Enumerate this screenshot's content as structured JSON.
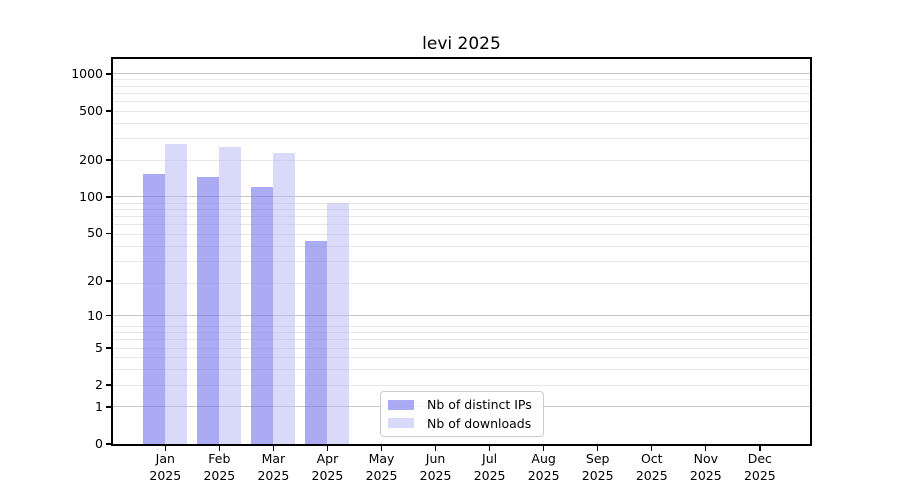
{
  "chart_data": {
    "type": "bar",
    "title": "levi 2025",
    "categories": [
      "Jan 2025",
      "Feb 2025",
      "Mar 2025",
      "Apr 2025",
      "May 2025",
      "Jun 2025",
      "Jul 2025",
      "Aug 2025",
      "Sep 2025",
      "Oct 2025",
      "Nov 2025",
      "Dec 2025"
    ],
    "series": [
      {
        "name": "Nb of distinct IPs",
        "color": "rgba(120,120,235,0.62)",
        "values": [
          155,
          145,
          120,
          43,
          0,
          0,
          0,
          0,
          0,
          0,
          0,
          0
        ]
      },
      {
        "name": "Nb of downloads",
        "color": "rgba(185,185,245,0.55)",
        "values": [
          270,
          255,
          227,
          89,
          0,
          0,
          0,
          0,
          0,
          0,
          0,
          0
        ]
      }
    ],
    "yscale": "log1p",
    "y_ticks": [
      0,
      1,
      2,
      5,
      10,
      20,
      50,
      100,
      200,
      500,
      1000
    ],
    "major_gridline_values": [
      1,
      10,
      100,
      1000
    ],
    "ylim": [
      0,
      1325
    ],
    "xlabel": "",
    "ylabel": "",
    "grid": "on",
    "legend_position": "lower center"
  },
  "colors": {
    "major_grid": "#c6c6c6",
    "minor_grid": "#e7e7e7",
    "axis_frame": "#000000",
    "legend_border": "#cccccc",
    "background": "#ffffff"
  }
}
